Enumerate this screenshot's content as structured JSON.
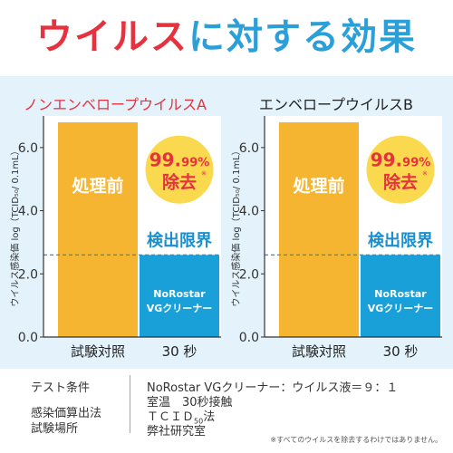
{
  "header": {
    "title_part1": "ウイルス",
    "title_part2": "に対する効果"
  },
  "chart_data": [
    {
      "type": "bar",
      "title": "ノンエンベロープウイルスA",
      "ylabel": "ウイルス感染価 log（TCID₅₀/ 0.1mL）",
      "yticks": [
        "0.0",
        "2.0",
        "4.0",
        "6.0"
      ],
      "ylim": [
        0,
        7
      ],
      "categories": [
        "試験対照",
        "30 秒"
      ],
      "values": [
        6.8,
        2.6
      ],
      "bar_labels": [
        "処理前",
        "NoRostar VGクリーナー"
      ],
      "detection_limit": 2.6,
      "detection_limit_label": "検出限界",
      "badge": {
        "percent_main": "99.",
        "percent_sub": "99",
        "percent_sign": "%",
        "text": "除去",
        "mark": "※"
      },
      "grid": false
    },
    {
      "type": "bar",
      "title": "エンベロープウイルスB",
      "ylabel": "ウイルス感染価 log（TCID₅₀/ 0.1mL）",
      "yticks": [
        "0.0",
        "2.0",
        "4.0",
        "6.0"
      ],
      "ylim": [
        0,
        7
      ],
      "categories": [
        "試験対照",
        "30 秒"
      ],
      "values": [
        6.8,
        2.6
      ],
      "bar_labels": [
        "処理前",
        "NoRostar VGクリーナー"
      ],
      "detection_limit": 2.6,
      "detection_limit_label": "検出限界",
      "badge": {
        "percent_main": "99.",
        "percent_sub": "99",
        "percent_sign": "%",
        "text": "除去",
        "mark": "※"
      },
      "grid": false
    }
  ],
  "conditions": {
    "label1": "テスト条件",
    "label2": "感染価算出法",
    "label3": "試験場所",
    "value1": "NoRostar VGクリーナー：ウイルス液＝９：１",
    "value2": "室温　30秒接触",
    "value3_pre": "ＴＣＩＤ",
    "value3_sub": "50",
    "value3_post": "法",
    "value4": "弊社研究室"
  },
  "footnote": "※すべてのウイルスを除去するわけではありません。",
  "colors": {
    "accent_red": "#e5323e",
    "accent_blue": "#2a9fd8",
    "bar_orange": "#f6b531",
    "bar_blue": "#1aa0d8",
    "panel_bg": "#e3f2fb",
    "badge_yellow": "#fbd94e"
  }
}
